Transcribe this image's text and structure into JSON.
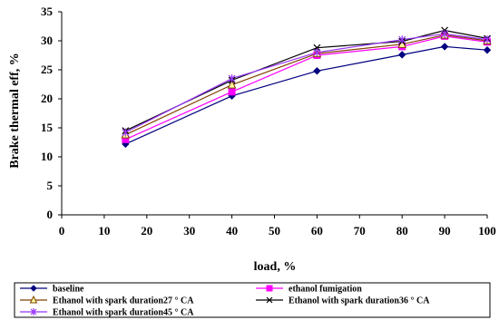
{
  "chart_data": {
    "type": "line",
    "xlabel": "load, %",
    "ylabel": "Brake thermal eff, %",
    "xlim": [
      0,
      100
    ],
    "ylim": [
      0,
      35
    ],
    "xticks": [
      "0",
      "10",
      "20",
      "30",
      "40",
      "50",
      "60",
      "70",
      "80",
      "90",
      "100"
    ],
    "yticks": [
      "0",
      "5",
      "10",
      "15",
      "20",
      "25",
      "30",
      "35"
    ],
    "grid": false,
    "legend_position": "bottom",
    "x": [
      15,
      40,
      60,
      80,
      90,
      100
    ],
    "series": [
      {
        "name": "baseline",
        "values": [
          12.2,
          20.5,
          24.8,
          27.6,
          29.0,
          28.4
        ],
        "color": "#000080",
        "marker": "diamond"
      },
      {
        "name": "ethanol fumigation",
        "values": [
          13.0,
          21.2,
          27.5,
          29.0,
          30.8,
          29.8
        ],
        "color": "#ff00ff",
        "marker": "square"
      },
      {
        "name": "Ethanol with spark duration27 ° CA",
        "values": [
          13.8,
          22.4,
          27.8,
          29.4,
          31.0,
          30.0
        ],
        "color": "#804000",
        "marker": "triangle"
      },
      {
        "name": "Ethanol with spark duration36 ° CA",
        "values": [
          14.5,
          23.2,
          28.8,
          29.9,
          31.8,
          30.4
        ],
        "color": "#000000",
        "marker": "x"
      },
      {
        "name": "Ethanol with spark duration45 ° CA",
        "values": [
          14.2,
          23.5,
          28.0,
          30.2,
          31.2,
          30.2
        ],
        "color": "#9933ff",
        "marker": "star"
      }
    ]
  }
}
